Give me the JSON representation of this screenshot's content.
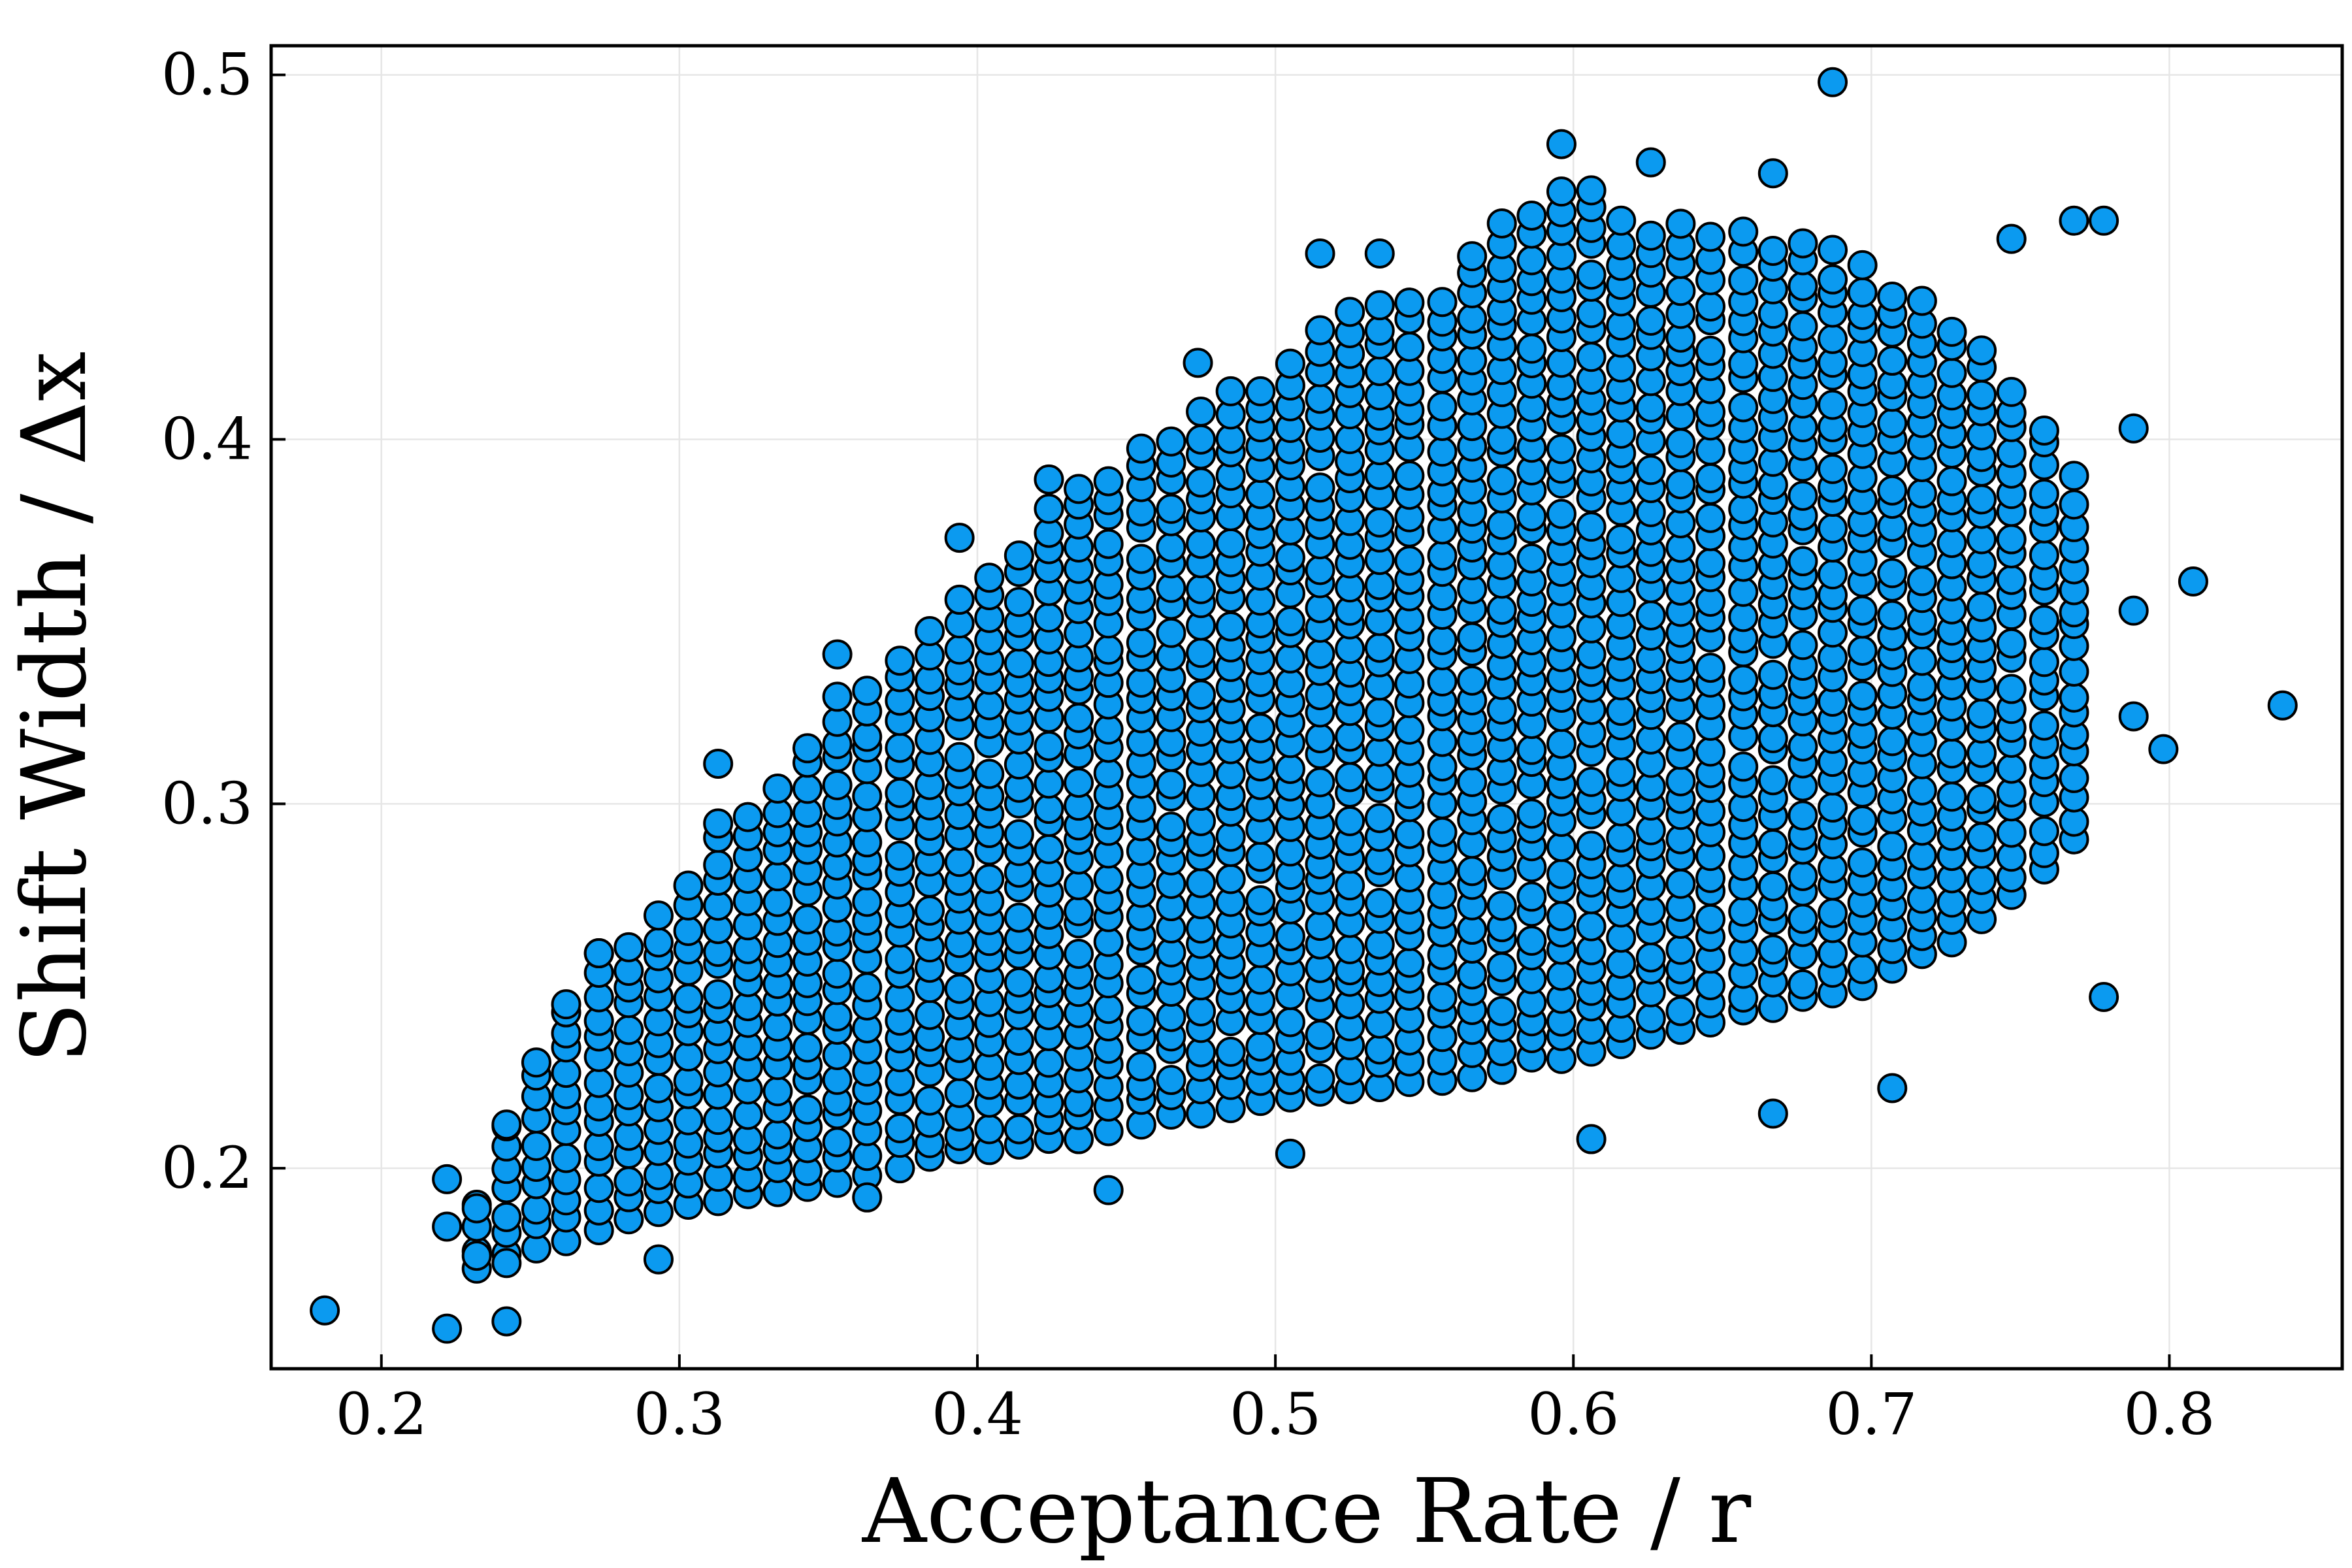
{
  "chart_data": {
    "type": "scatter",
    "title": "",
    "xlabel": "Acceptance Rate / r",
    "ylabel": "Shift Width / Δx",
    "xlim": [
      0.163,
      0.858
    ],
    "ylim": [
      0.145,
      0.508
    ],
    "x_ticks": [
      "0.2",
      "0.3",
      "0.4",
      "0.5",
      "0.6",
      "0.7",
      "0.8"
    ],
    "y_ticks": [
      "0.2",
      "0.3",
      "0.4",
      "0.5"
    ],
    "grid": true,
    "legend": "none",
    "marker_color": "#0b9af0",
    "marker_edge_color": "#000000",
    "cloud_description_points": [
      {
        "x": 0.181,
        "y": 0.161
      },
      {
        "x": 0.222,
        "y": 0.156
      },
      {
        "x": 0.222,
        "y": 0.197
      },
      {
        "x": 0.222,
        "y": 0.184
      },
      {
        "x": 0.242,
        "y": 0.158
      },
      {
        "x": 0.242,
        "y": 0.174
      },
      {
        "x": 0.232,
        "y": 0.176
      },
      {
        "x": 0.232,
        "y": 0.189
      },
      {
        "x": 0.242,
        "y": 0.212
      },
      {
        "x": 0.262,
        "y": 0.245
      },
      {
        "x": 0.273,
        "y": 0.259
      },
      {
        "x": 0.293,
        "y": 0.175
      },
      {
        "x": 0.313,
        "y": 0.311
      },
      {
        "x": 0.353,
        "y": 0.341
      },
      {
        "x": 0.363,
        "y": 0.192
      },
      {
        "x": 0.394,
        "y": 0.373
      },
      {
        "x": 0.424,
        "y": 0.389
      },
      {
        "x": 0.444,
        "y": 0.194
      },
      {
        "x": 0.474,
        "y": 0.421
      },
      {
        "x": 0.505,
        "y": 0.204
      },
      {
        "x": 0.515,
        "y": 0.451
      },
      {
        "x": 0.535,
        "y": 0.451
      },
      {
        "x": 0.596,
        "y": 0.481
      },
      {
        "x": 0.606,
        "y": 0.208
      },
      {
        "x": 0.626,
        "y": 0.476
      },
      {
        "x": 0.667,
        "y": 0.473
      },
      {
        "x": 0.667,
        "y": 0.215
      },
      {
        "x": 0.687,
        "y": 0.498
      },
      {
        "x": 0.707,
        "y": 0.222
      },
      {
        "x": 0.747,
        "y": 0.455
      },
      {
        "x": 0.768,
        "y": 0.46
      },
      {
        "x": 0.778,
        "y": 0.46
      },
      {
        "x": 0.778,
        "y": 0.247
      },
      {
        "x": 0.788,
        "y": 0.403
      },
      {
        "x": 0.788,
        "y": 0.353
      },
      {
        "x": 0.788,
        "y": 0.324
      },
      {
        "x": 0.798,
        "y": 0.315
      },
      {
        "x": 0.808,
        "y": 0.361
      },
      {
        "x": 0.838,
        "y": 0.327
      }
    ],
    "cloud_band": {
      "x_values": [
        0.232,
        0.242,
        0.252,
        0.262,
        0.273,
        0.283,
        0.293,
        0.303,
        0.313,
        0.323,
        0.333,
        0.343,
        0.353,
        0.363,
        0.374,
        0.384,
        0.394,
        0.404,
        0.414,
        0.424,
        0.434,
        0.444,
        0.455,
        0.465,
        0.475,
        0.485,
        0.495,
        0.505,
        0.515,
        0.525,
        0.535,
        0.545,
        0.556,
        0.566,
        0.576,
        0.586,
        0.596,
        0.606,
        0.616,
        0.626,
        0.636,
        0.646,
        0.657,
        0.667,
        0.677,
        0.687,
        0.697,
        0.707,
        0.717,
        0.727,
        0.737,
        0.747,
        0.758,
        0.768
      ],
      "y_lower": [
        0.172,
        0.176,
        0.178,
        0.18,
        0.183,
        0.186,
        0.188,
        0.19,
        0.191,
        0.192,
        0.193,
        0.194,
        0.196,
        0.198,
        0.2,
        0.202,
        0.204,
        0.205,
        0.206,
        0.207,
        0.208,
        0.21,
        0.212,
        0.214,
        0.215,
        0.216,
        0.217,
        0.218,
        0.22,
        0.221,
        0.222,
        0.223,
        0.224,
        0.225,
        0.227,
        0.229,
        0.23,
        0.232,
        0.234,
        0.236,
        0.238,
        0.24,
        0.242,
        0.244,
        0.246,
        0.248,
        0.25,
        0.254,
        0.258,
        0.262,
        0.268,
        0.275,
        0.282,
        0.29
      ],
      "y_upper": [
        0.19,
        0.212,
        0.234,
        0.245,
        0.259,
        0.262,
        0.272,
        0.28,
        0.296,
        0.302,
        0.306,
        0.316,
        0.33,
        0.336,
        0.342,
        0.348,
        0.356,
        0.366,
        0.374,
        0.386,
        0.389,
        0.392,
        0.4,
        0.405,
        0.41,
        0.415,
        0.418,
        0.424,
        0.434,
        0.44,
        0.442,
        0.443,
        0.444,
        0.452,
        0.462,
        0.465,
        0.468,
        0.47,
        0.466,
        0.462,
        0.46,
        0.458,
        0.457,
        0.456,
        0.455,
        0.452,
        0.448,
        0.442,
        0.438,
        0.436,
        0.43,
        0.42,
        0.405,
        0.39
      ]
    }
  }
}
